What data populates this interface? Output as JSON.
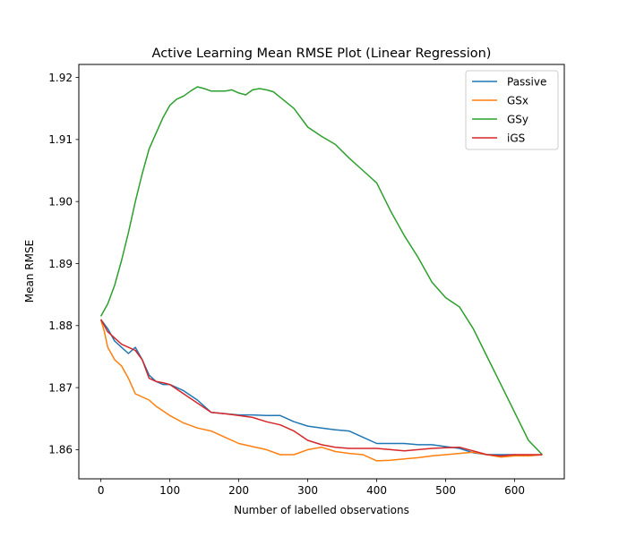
{
  "chart_data": {
    "type": "line",
    "title": "Active Learning Mean RMSE Plot (Linear Regression)",
    "xlabel": "Number of labelled observations",
    "ylabel": "Mean RMSE",
    "xlim": [
      -32,
      672
    ],
    "ylim": [
      1.8553,
      1.9221
    ],
    "xticks": [
      0,
      100,
      200,
      300,
      400,
      500,
      600
    ],
    "yticks": [
      1.86,
      1.87,
      1.88,
      1.89,
      1.9,
      1.91,
      1.92
    ],
    "ytick_labels": [
      "1.86",
      "1.87",
      "1.88",
      "1.89",
      "1.90",
      "1.91",
      "1.92"
    ],
    "grid": false,
    "legend_position": "top-right",
    "series": [
      {
        "name": "Passive",
        "color": "#1f77b4",
        "x": [
          0,
          10,
          20,
          30,
          40,
          50,
          60,
          70,
          80,
          90,
          100,
          120,
          140,
          160,
          180,
          200,
          220,
          240,
          260,
          280,
          300,
          320,
          340,
          360,
          380,
          400,
          420,
          440,
          460,
          480,
          500,
          520,
          540,
          560,
          580,
          600,
          620,
          640
        ],
        "y": [
          1.881,
          1.8795,
          1.8775,
          1.8765,
          1.8755,
          1.8765,
          1.8745,
          1.872,
          1.871,
          1.8705,
          1.8705,
          1.8695,
          1.868,
          1.866,
          1.8658,
          1.8656,
          1.8656,
          1.8655,
          1.8655,
          1.8645,
          1.8638,
          1.8635,
          1.8632,
          1.863,
          1.862,
          1.861,
          1.861,
          1.861,
          1.8608,
          1.8608,
          1.8605,
          1.8602,
          1.8595,
          1.8592,
          1.8592,
          1.8592,
          1.859,
          1.8592
        ]
      },
      {
        "name": "GSx",
        "color": "#ff7f0e",
        "x": [
          0,
          5,
          10,
          15,
          20,
          30,
          40,
          50,
          60,
          70,
          80,
          100,
          120,
          140,
          160,
          180,
          200,
          220,
          240,
          260,
          280,
          300,
          320,
          340,
          360,
          380,
          400,
          420,
          440,
          460,
          480,
          500,
          520,
          540,
          560,
          580,
          600,
          620,
          640
        ],
        "y": [
          1.881,
          1.879,
          1.8765,
          1.8755,
          1.8745,
          1.8735,
          1.8715,
          1.869,
          1.8685,
          1.868,
          1.867,
          1.8655,
          1.8643,
          1.8635,
          1.863,
          1.862,
          1.861,
          1.8605,
          1.86,
          1.8592,
          1.8592,
          1.86,
          1.8604,
          1.8597,
          1.8594,
          1.8592,
          1.8582,
          1.8583,
          1.8585,
          1.8587,
          1.859,
          1.8592,
          1.8594,
          1.8596,
          1.8592,
          1.8588,
          1.859,
          1.859,
          1.8592
        ]
      },
      {
        "name": "GSy",
        "color": "#2ca02c",
        "x": [
          0,
          10,
          20,
          30,
          40,
          50,
          60,
          70,
          80,
          90,
          100,
          110,
          120,
          130,
          140,
          150,
          160,
          170,
          180,
          190,
          200,
          210,
          220,
          230,
          240,
          250,
          260,
          280,
          300,
          320,
          340,
          360,
          380,
          400,
          420,
          440,
          460,
          480,
          500,
          520,
          540,
          560,
          580,
          600,
          620,
          640
        ],
        "y": [
          1.8815,
          1.8835,
          1.8865,
          1.8905,
          1.895,
          1.9,
          1.9045,
          1.9085,
          1.911,
          1.9135,
          1.9155,
          1.9165,
          1.917,
          1.9178,
          1.9185,
          1.9182,
          1.9178,
          1.9178,
          1.9178,
          1.918,
          1.9175,
          1.9172,
          1.918,
          1.9182,
          1.918,
          1.9177,
          1.9168,
          1.915,
          1.912,
          1.9105,
          1.9092,
          1.907,
          1.905,
          1.903,
          1.8985,
          1.8945,
          1.891,
          1.887,
          1.8845,
          1.883,
          1.8795,
          1.875,
          1.8705,
          1.866,
          1.8615,
          1.8592
        ]
      },
      {
        "name": "iGS",
        "color": "#d62728",
        "x": [
          0,
          10,
          20,
          30,
          40,
          50,
          60,
          70,
          80,
          90,
          100,
          120,
          140,
          160,
          180,
          200,
          220,
          240,
          260,
          280,
          300,
          320,
          340,
          360,
          380,
          400,
          420,
          440,
          460,
          480,
          500,
          520,
          540,
          560,
          580,
          600,
          620,
          640
        ],
        "y": [
          1.881,
          1.879,
          1.878,
          1.877,
          1.8765,
          1.876,
          1.8745,
          1.8715,
          1.871,
          1.8708,
          1.8705,
          1.869,
          1.8675,
          1.866,
          1.8658,
          1.8655,
          1.8652,
          1.8645,
          1.864,
          1.863,
          1.8615,
          1.8608,
          1.8604,
          1.8602,
          1.8602,
          1.8602,
          1.86,
          1.8598,
          1.86,
          1.8602,
          1.8603,
          1.8604,
          1.8598,
          1.8592,
          1.859,
          1.8592,
          1.8592,
          1.8592
        ]
      }
    ]
  }
}
